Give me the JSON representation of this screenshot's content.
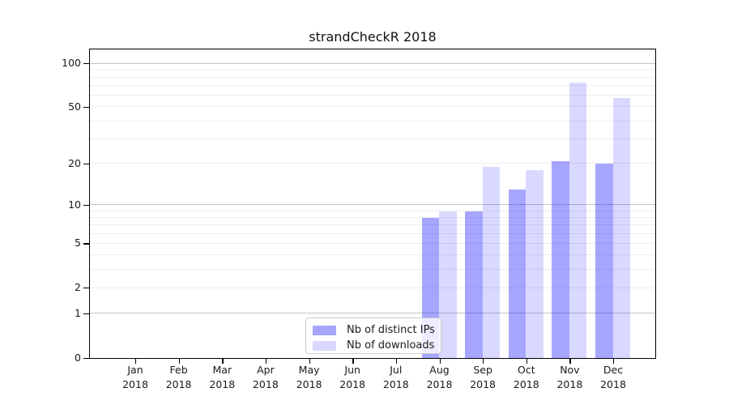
{
  "title": "strandCheckR 2018",
  "legend": {
    "items": [
      {
        "label": "Nb of distinct IPs",
        "color": "rgba(0,0,255,0.35)"
      },
      {
        "label": "Nb of downloads",
        "color": "rgba(0,0,255,0.15)"
      }
    ]
  },
  "chart_data": {
    "type": "bar",
    "title": "strandCheckR 2018",
    "categories": [
      "Jan 2018",
      "Feb 2018",
      "Mar 2018",
      "Apr 2018",
      "May 2018",
      "Jun 2018",
      "Jul 2018",
      "Aug 2018",
      "Sep 2018",
      "Oct 2018",
      "Nov 2018",
      "Dec 2018"
    ],
    "x_tick_labels": [
      {
        "line1": "Jan",
        "line2": "2018"
      },
      {
        "line1": "Feb",
        "line2": "2018"
      },
      {
        "line1": "Mar",
        "line2": "2018"
      },
      {
        "line1": "Apr",
        "line2": "2018"
      },
      {
        "line1": "May",
        "line2": "2018"
      },
      {
        "line1": "Jun",
        "line2": "2018"
      },
      {
        "line1": "Jul",
        "line2": "2018"
      },
      {
        "line1": "Aug",
        "line2": "2018"
      },
      {
        "line1": "Sep",
        "line2": "2018"
      },
      {
        "line1": "Oct",
        "line2": "2018"
      },
      {
        "line1": "Nov",
        "line2": "2018"
      },
      {
        "line1": "Dec",
        "line2": "2018"
      }
    ],
    "series": [
      {
        "name": "Nb of distinct IPs",
        "color": "rgba(0,0,255,0.35)",
        "values": [
          0,
          0,
          0,
          0,
          0,
          0,
          0,
          8,
          9,
          13,
          21,
          20
        ]
      },
      {
        "name": "Nb of downloads",
        "color": "rgba(0,0,255,0.15)",
        "values": [
          0,
          0,
          0,
          0,
          0,
          0,
          0,
          9,
          19,
          18,
          74,
          58
        ]
      }
    ],
    "yscale": "log1p",
    "ylim": [
      0,
      126
    ],
    "y_ticks": [
      0,
      1,
      2,
      5,
      10,
      20,
      50,
      100
    ],
    "y_tick_labels": [
      "0",
      "1",
      "2",
      "5",
      "10",
      "20",
      "50",
      "100"
    ],
    "y_major_gridlines": [
      1,
      10,
      100
    ],
    "y_minor_gridlines": [
      2,
      3,
      4,
      5,
      6,
      7,
      8,
      9,
      20,
      30,
      40,
      50,
      60,
      70,
      80,
      90
    ],
    "grid": true,
    "legend_position": "lower center",
    "xlabel": "",
    "ylabel": ""
  },
  "colors": {
    "bar_distinct_ips": "rgba(0,0,255,0.35)",
    "bar_downloads": "rgba(0,0,255,0.15)",
    "grid_major": "#c6c6c6",
    "grid_minor": "#ededed",
    "axis": "#000000",
    "legend_border": "#cccccc"
  }
}
